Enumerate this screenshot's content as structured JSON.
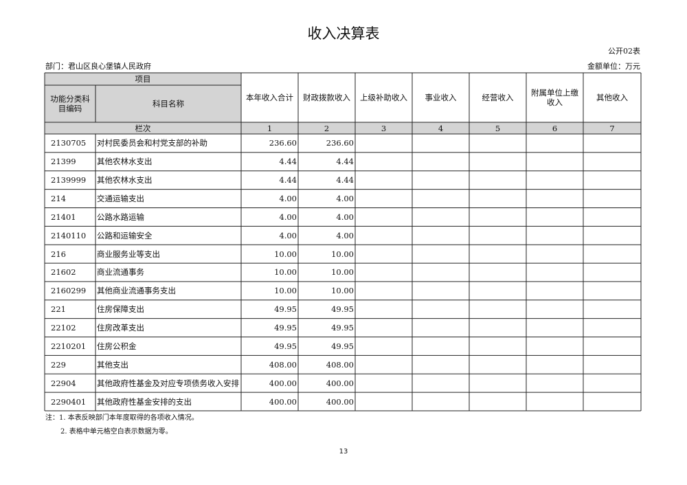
{
  "header": {
    "title": "收入决算表",
    "form_no": "公开02表",
    "department": "部门：君山区良心堡镇人民政府",
    "unit": "金额单位：万元"
  },
  "table": {
    "item_label": "项目",
    "code_header": "功能分类科目编码",
    "name_header": "科目名称",
    "row_no_label": "栏次",
    "columns": [
      "本年收入合计",
      "财政拨款收入",
      "上级补助收入",
      "事业收入",
      "经营收入",
      "附属单位上缴收入",
      "其他收入"
    ],
    "column_numbers": [
      "1",
      "2",
      "3",
      "4",
      "5",
      "6",
      "7"
    ],
    "rows": [
      [
        "2130705",
        "对村民委员会和村党支部的补助",
        "236.60",
        "236.60"
      ],
      [
        "21399",
        "其他农林水支出",
        "4.44",
        "4.44"
      ],
      [
        "2139999",
        "其他农林水支出",
        "4.44",
        "4.44"
      ],
      [
        "214",
        "交通运输支出",
        "4.00",
        "4.00"
      ],
      [
        "21401",
        "公路水路运输",
        "4.00",
        "4.00"
      ],
      [
        "2140110",
        "公路和运输安全",
        "4.00",
        "4.00"
      ],
      [
        "216",
        "商业服务业等支出",
        "10.00",
        "10.00"
      ],
      [
        "21602",
        "商业流通事务",
        "10.00",
        "10.00"
      ],
      [
        "2160299",
        "其他商业流通事务支出",
        "10.00",
        "10.00"
      ],
      [
        "221",
        "住房保障支出",
        "49.95",
        "49.95"
      ],
      [
        "22102",
        "住房改革支出",
        "49.95",
        "49.95"
      ],
      [
        "2210201",
        "住房公积金",
        "49.95",
        "49.95"
      ],
      [
        "229",
        "其他支出",
        "408.00",
        "408.00"
      ],
      [
        "22904",
        "其他政府性基金及对应专项债务收入安排",
        "400.00",
        "400.00"
      ],
      [
        "2290401",
        "其他政府性基金安排的支出",
        "400.00",
        "400.00"
      ]
    ]
  },
  "footer": {
    "notes": [
      "注：1. 本表反映部门本年度取得的各项收入情况。",
      "2. 表格中单元格空白表示数据为零。"
    ],
    "page": "13"
  }
}
